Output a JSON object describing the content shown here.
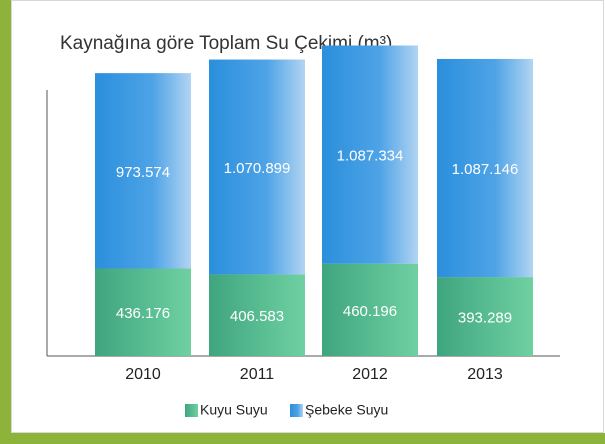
{
  "chart_data": {
    "type": "stacked_bar",
    "title": "Kaynağına göre Toplam Su Çekimi (m³)",
    "categories": [
      "2010",
      "2011",
      "2012",
      "2013"
    ],
    "series": [
      {
        "name": "Kuyu Suyu",
        "color": "#3fae8a",
        "values": [
          436176,
          406583,
          460196,
          393289
        ],
        "value_labels": [
          "436.176",
          "406.583",
          "460.196",
          "393.289"
        ]
      },
      {
        "name": "Şebeke Suyu",
        "color": "#2a8fdc",
        "values": [
          973574,
          1070899,
          1087334,
          1087146
        ],
        "value_labels": [
          "973.574",
          "1.070.899",
          "1.087.334",
          "1.087.146"
        ]
      }
    ],
    "ylim": [
      0,
      1550000
    ]
  }
}
